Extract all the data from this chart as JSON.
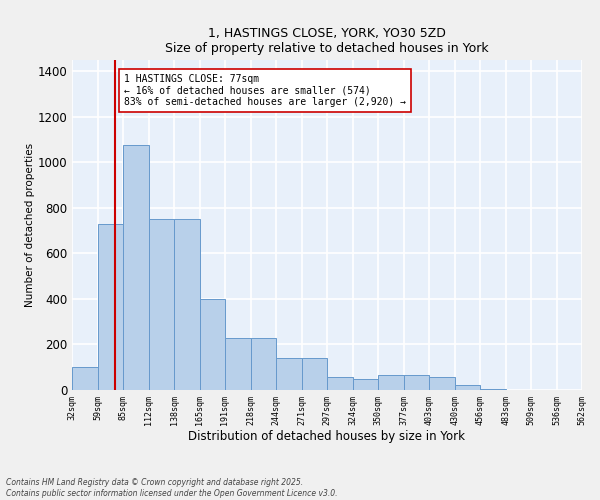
{
  "title_line1": "1, HASTINGS CLOSE, YORK, YO30 5ZD",
  "title_line2": "Size of property relative to detached houses in York",
  "xlabel": "Distribution of detached houses by size in York",
  "ylabel": "Number of detached properties",
  "bins": [
    32,
    59,
    85,
    112,
    138,
    165,
    191,
    218,
    244,
    271,
    297,
    324,
    350,
    377,
    403,
    430,
    456,
    483,
    509,
    536,
    562
  ],
  "bar_heights": [
    100,
    730,
    1075,
    750,
    750,
    400,
    230,
    230,
    140,
    140,
    55,
    50,
    65,
    65,
    55,
    20,
    5,
    0,
    0,
    0
  ],
  "bar_color": "#b8d0ea",
  "bar_edge_color": "#6699cc",
  "bar_edge_width": 0.7,
  "vline_x": 77,
  "vline_color": "#cc0000",
  "annotation_text": "1 HASTINGS CLOSE: 77sqm\n← 16% of detached houses are smaller (574)\n83% of semi-detached houses are larger (2,920) →",
  "annotation_box_color": "#ffffff",
  "annotation_box_edge": "#cc0000",
  "ylim": [
    0,
    1450
  ],
  "yticks": [
    0,
    200,
    400,
    600,
    800,
    1000,
    1200,
    1400
  ],
  "background_color": "#e8f0fa",
  "grid_color": "#ffffff",
  "fig_facecolor": "#f0f0f0",
  "footer_line1": "Contains HM Land Registry data © Crown copyright and database right 2025.",
  "footer_line2": "Contains public sector information licensed under the Open Government Licence v3.0."
}
